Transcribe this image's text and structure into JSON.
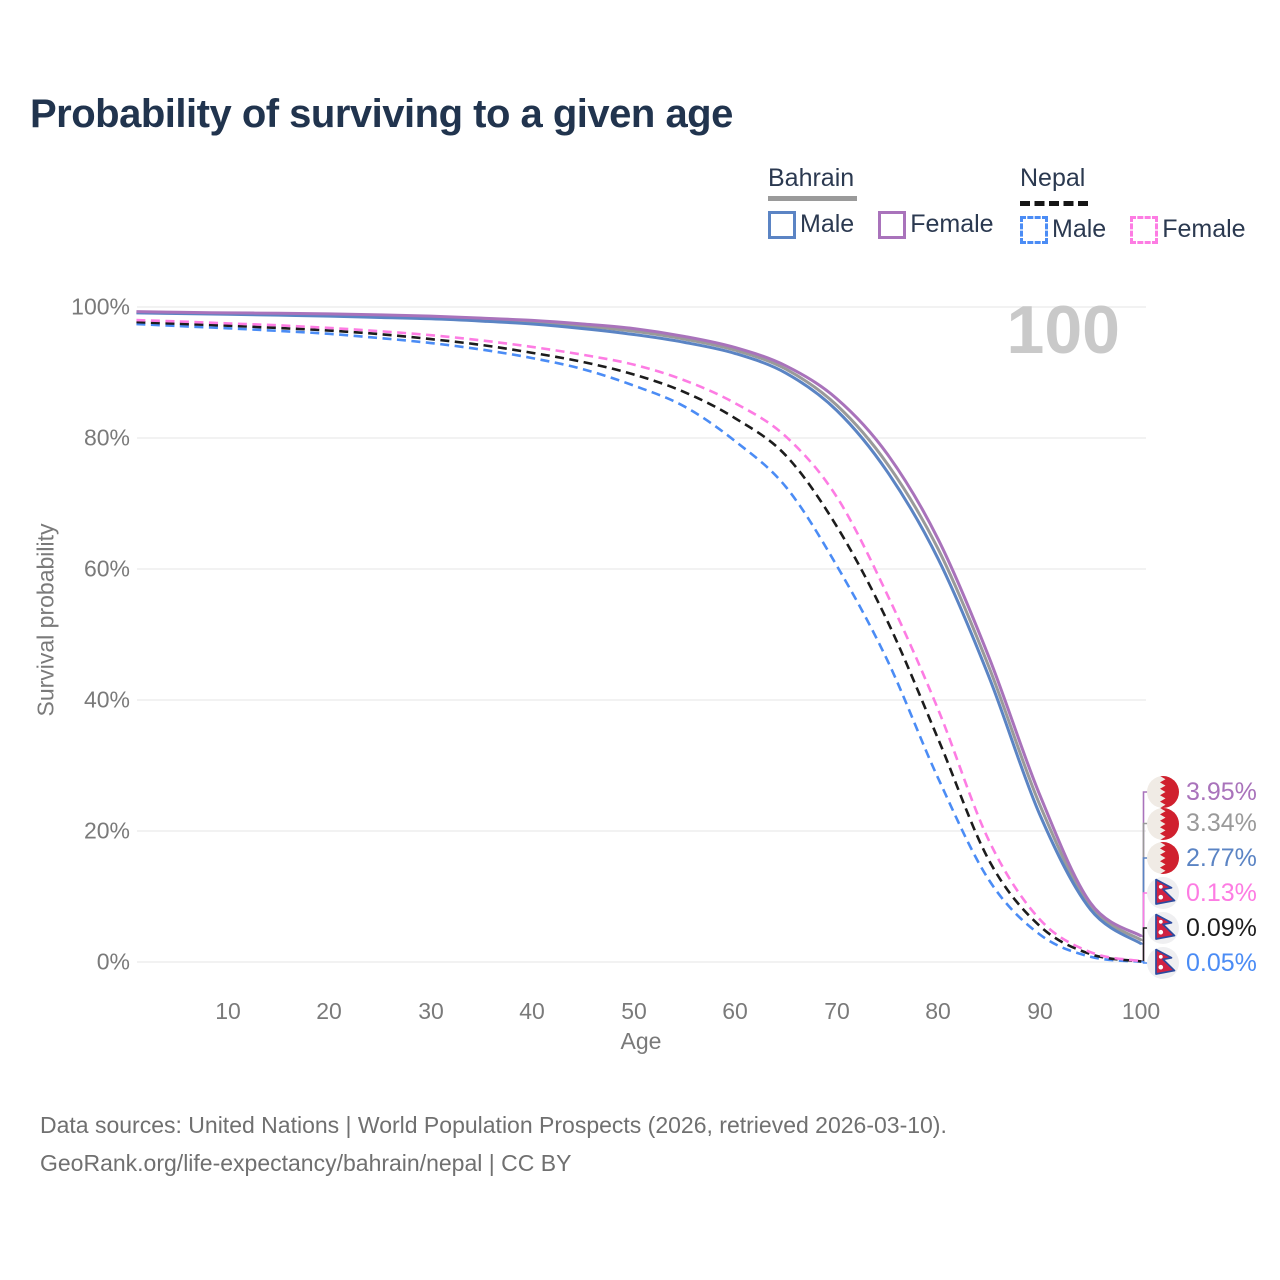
{
  "title": "Probability of surviving to a given age",
  "watermark": "100",
  "legend": {
    "bahrain": {
      "name": "Bahrain",
      "male_label": "Male",
      "female_label": "Female"
    },
    "nepal": {
      "name": "Nepal",
      "male_label": "Male",
      "female_label": "Female"
    }
  },
  "y_axis": {
    "label": "Survival probability",
    "ticks": [
      "100%",
      "80%",
      "60%",
      "40%",
      "20%",
      "0%"
    ]
  },
  "x_axis": {
    "label": "Age",
    "ticks": [
      "10",
      "20",
      "30",
      "40",
      "50",
      "60",
      "70",
      "80",
      "90",
      "100"
    ]
  },
  "end_labels": [
    {
      "text": "3.95%",
      "series_id": "bahrain_female",
      "flag": "bahrain",
      "color": "#a973bb"
    },
    {
      "text": "3.34%",
      "series_id": "bahrain_total",
      "flag": "bahrain",
      "color": "#9a9a9a"
    },
    {
      "text": "2.77%",
      "series_id": "bahrain_male",
      "flag": "bahrain",
      "color": "#5b84c4"
    },
    {
      "text": "0.13%",
      "series_id": "nepal_female",
      "flag": "nepal",
      "color": "#fd7ce3"
    },
    {
      "text": "0.09%",
      "series_id": "nepal_total",
      "flag": "nepal",
      "color": "#1c1c1c"
    },
    {
      "text": "0.05%",
      "series_id": "nepal_male",
      "flag": "nepal",
      "color": "#4b8cf5"
    }
  ],
  "footer": {
    "line1": "Data sources: United Nations | World Population Prospects (2026, retrieved 2026-03-10).",
    "line2": "GeoRank.org/life-expectancy/bahrain/nepal | CC BY"
  },
  "chart_data": {
    "type": "line",
    "title": "Probability of surviving to a given age",
    "xlabel": "Age",
    "ylabel": "Survival probability",
    "xlim": [
      0,
      112
    ],
    "ylim": [
      0,
      100
    ],
    "grid": true,
    "legend_position": "top-right",
    "x_ages": [
      1,
      5,
      10,
      15,
      20,
      25,
      30,
      35,
      40,
      45,
      50,
      55,
      60,
      65,
      70,
      75,
      80,
      85,
      90,
      95,
      100
    ],
    "series": [
      {
        "id": "nepal_male",
        "name": "Nepal Male",
        "country": "Nepal",
        "sex": "Male",
        "style": "dashed",
        "color": "#4b8cf5",
        "final_label": "0.05%",
        "values": [
          97.4,
          97.1,
          96.75,
          96.35,
          95.9,
          95.25,
          94.5,
          93.5,
          92.2,
          90.5,
          88.0,
          84.8,
          79.5,
          72.5,
          60.5,
          46.0,
          28.0,
          12.5,
          4.2,
          0.8,
          0.05
        ]
      },
      {
        "id": "nepal_total",
        "name": "Nepal Both sexes",
        "country": "Nepal",
        "sex": "Both",
        "style": "dashed",
        "color": "#1c1c1c",
        "final_label": "0.09%",
        "values": [
          97.7,
          97.45,
          97.15,
          96.8,
          96.4,
          95.85,
          95.1,
          94.2,
          93.0,
          91.6,
          89.7,
          87.0,
          83.0,
          77.3,
          66.5,
          52.0,
          34.0,
          15.5,
          5.5,
          1.2,
          0.09
        ]
      },
      {
        "id": "nepal_female",
        "name": "Nepal Female",
        "country": "Nepal",
        "sex": "Female",
        "style": "dashed",
        "color": "#fd7ce3",
        "final_label": "0.13%",
        "values": [
          98.0,
          97.8,
          97.5,
          97.2,
          96.8,
          96.3,
          95.7,
          94.9,
          93.9,
          92.7,
          91.2,
          88.8,
          85.3,
          80.2,
          71.0,
          56.0,
          38.5,
          18.5,
          6.5,
          1.5,
          0.13
        ]
      },
      {
        "id": "bahrain_total",
        "name": "Bahrain Both sexes",
        "country": "Bahrain",
        "sex": "Both",
        "style": "solid",
        "color": "#9a9a9a",
        "final_label": "3.34%",
        "values": [
          99.2,
          99.1,
          99.0,
          98.9,
          98.8,
          98.6,
          98.4,
          98.1,
          97.7,
          97.1,
          96.3,
          95.1,
          93.4,
          90.5,
          85.0,
          76.0,
          63.0,
          45.0,
          24.0,
          8.5,
          3.34
        ]
      },
      {
        "id": "bahrain_male",
        "name": "Bahrain Male",
        "country": "Bahrain",
        "sex": "Male",
        "style": "solid",
        "color": "#5b84c4",
        "final_label": "2.77%",
        "values": [
          99.1,
          99.0,
          98.9,
          98.75,
          98.6,
          98.4,
          98.2,
          97.85,
          97.4,
          96.7,
          95.8,
          94.6,
          92.9,
          89.9,
          84.2,
          74.8,
          61.5,
          43.5,
          22.5,
          8.0,
          2.77
        ]
      },
      {
        "id": "bahrain_female",
        "name": "Bahrain Female",
        "country": "Bahrain",
        "sex": "Female",
        "style": "solid",
        "color": "#a973bb",
        "final_label": "3.95%",
        "values": [
          99.3,
          99.2,
          99.1,
          99.05,
          98.95,
          98.8,
          98.6,
          98.3,
          97.95,
          97.4,
          96.7,
          95.5,
          93.8,
          91.0,
          86.0,
          77.5,
          64.5,
          46.5,
          25.5,
          9.0,
          3.95
        ]
      }
    ]
  }
}
